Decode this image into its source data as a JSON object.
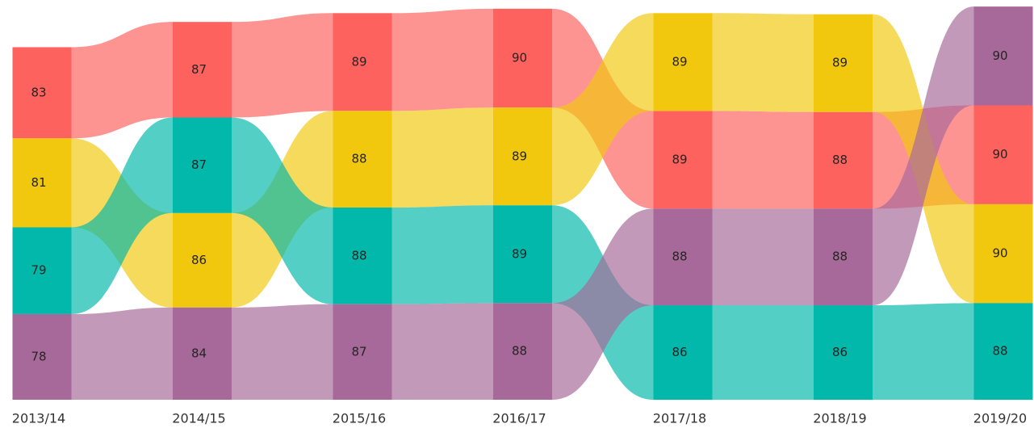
{
  "chart_data": {
    "type": "ribbon",
    "categories": [
      "2013/14",
      "2014/15",
      "2015/16",
      "2016/17",
      "2017/18",
      "2018/19",
      "2019/20"
    ],
    "series": [
      {
        "color": "#fd625e",
        "values": [
          83,
          87,
          89,
          90,
          89,
          88,
          90
        ]
      },
      {
        "color": "#f2c80f",
        "values": [
          81,
          86,
          88,
          89,
          89,
          89,
          90
        ]
      },
      {
        "color": "#01b8aa",
        "values": [
          79,
          87,
          88,
          89,
          86,
          86,
          88
        ]
      },
      {
        "color": "#a66999",
        "values": [
          78,
          84,
          87,
          88,
          88,
          88,
          90
        ]
      }
    ]
  }
}
